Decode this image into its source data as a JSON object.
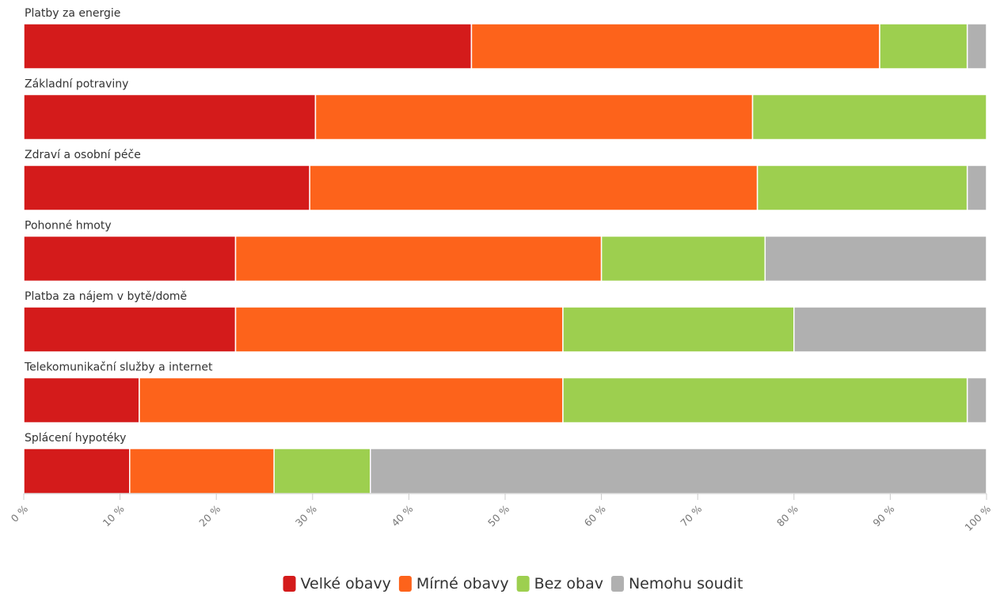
{
  "chart_data": {
    "type": "bar",
    "orientation": "horizontal",
    "stacked": true,
    "categories": [
      "Platby za energie",
      "Základní potraviny",
      "Zdraví a osobní péče",
      "Pohonné hmoty",
      "Platba za nájem v bytě/domě",
      "Telekomunikační služby a internet",
      "Splácení hypotéky"
    ],
    "series": [
      {
        "name": "Velké obavy",
        "color": "#d41b1b",
        "values": [
          46.5,
          30.3,
          29.7,
          22,
          22,
          12,
          11
        ]
      },
      {
        "name": "Mírné obavy",
        "color": "#fd631b",
        "values": [
          42.4,
          45.4,
          46.5,
          38,
          34,
          44,
          15
        ]
      },
      {
        "name": "Bez obav",
        "color": "#9dcf4f",
        "values": [
          9.1,
          24.3,
          21.8,
          17,
          24,
          42,
          10
        ]
      },
      {
        "name": "Nemohu soudit",
        "color": "#b0b0b0",
        "values": [
          2,
          0,
          2,
          23,
          20,
          2,
          64
        ]
      }
    ],
    "xlim": [
      0,
      100
    ],
    "x_ticks": [
      0,
      10,
      20,
      30,
      40,
      50,
      60,
      70,
      80,
      90,
      100
    ],
    "x_tick_labels": [
      "0 %",
      "10 %",
      "20 %",
      "30 %",
      "40 %",
      "50 %",
      "60 %",
      "70 %",
      "80 %",
      "90 %",
      "100 %"
    ],
    "grid": false,
    "legend_position": "bottom-center"
  }
}
